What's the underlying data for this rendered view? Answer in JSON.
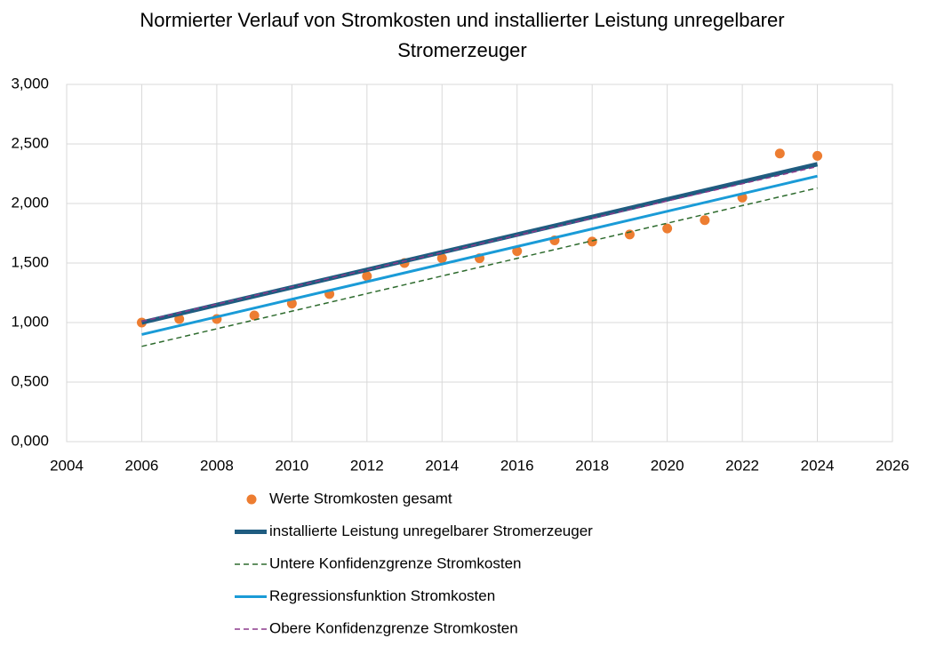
{
  "chart_data": {
    "type": "scatter",
    "title": [
      "Normierter Verlauf von Stromkosten und installierter Leistung unregelbarer",
      "Stromerzeuger"
    ],
    "xlim": [
      2004,
      2026
    ],
    "xticks": [
      2004,
      2006,
      2008,
      2010,
      2012,
      2014,
      2016,
      2018,
      2020,
      2022,
      2024,
      2026
    ],
    "ylim": [
      0,
      3
    ],
    "yticks": [
      {
        "value": 0,
        "label": "0,000"
      },
      {
        "value": 0.5,
        "label": "0,500"
      },
      {
        "value": 1,
        "label": "1,000"
      },
      {
        "value": 1.5,
        "label": "1,500"
      },
      {
        "value": 2,
        "label": "2,000"
      },
      {
        "value": 2.5,
        "label": "2,500"
      },
      {
        "value": 3,
        "label": "3,000"
      }
    ],
    "grid": true,
    "legend": "bottom",
    "series": [
      {
        "name": "Werte Stromkosten gesamt",
        "type": "scatter",
        "color": "#ed7d31",
        "x": [
          2006,
          2007,
          2008,
          2009,
          2010,
          2011,
          2012,
          2013,
          2014,
          2015,
          2016,
          2017,
          2018,
          2019,
          2020,
          2021,
          2022,
          2023,
          2024
        ],
        "values": [
          1.0,
          1.03,
          1.03,
          1.06,
          1.16,
          1.24,
          1.39,
          1.5,
          1.54,
          1.54,
          1.6,
          1.69,
          1.68,
          1.74,
          1.79,
          1.86,
          2.05,
          2.42,
          2.4
        ]
      },
      {
        "name": "installierte Leistung unregelbarer Stromerzeuger",
        "type": "line",
        "color": "#1f5c80",
        "width": 5,
        "dashed": false,
        "x": [
          2006,
          2024
        ],
        "values": [
          1.0,
          2.33
        ]
      },
      {
        "name": "Untere Konfidenzgrenze Stromkosten",
        "type": "line",
        "color": "#2e6b2e",
        "width": 1.5,
        "dashed": true,
        "x": [
          2006,
          2024
        ],
        "values": [
          0.8,
          2.13
        ]
      },
      {
        "name": "Regressionsfunktion Stromkosten",
        "type": "line",
        "color": "#1a9bd7",
        "width": 3,
        "dashed": false,
        "x": [
          2006,
          2024
        ],
        "values": [
          0.9,
          2.23
        ]
      },
      {
        "name": "Obere Konfidenzgrenze Stromkosten",
        "type": "line",
        "color": "#8b3a8b",
        "width": 1.5,
        "dashed": true,
        "x": [
          2006,
          2024
        ],
        "values": [
          1.01,
          2.31
        ]
      }
    ]
  }
}
